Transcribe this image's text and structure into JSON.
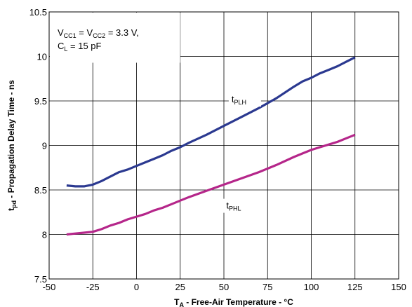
{
  "chart_data": {
    "type": "line",
    "xlabel_main": "T",
    "xlabel_sub": "A",
    "xlabel_rest": " - Free-Air Temperature - °C",
    "ylabel_main": "t",
    "ylabel_sub": "pd",
    "ylabel_rest": " - Propagation Delay Time - ns",
    "xlim": [
      -50,
      150
    ],
    "ylim": [
      7.5,
      10.5
    ],
    "x_ticks": [
      -50,
      -25,
      0,
      25,
      50,
      75,
      100,
      125,
      150
    ],
    "x_tick_labels": [
      "-50",
      "-25",
      "0",
      "25",
      "50",
      "75",
      "100",
      "125",
      "150"
    ],
    "y_ticks": [
      7.5,
      8,
      8.5,
      9,
      9.5,
      10,
      10.5
    ],
    "y_tick_labels": [
      "7.5",
      "8",
      "8.5",
      "9",
      "9.5",
      "10",
      "10.5"
    ],
    "grid": true,
    "annotation": {
      "line1_a": "V",
      "line1_a_sub": "CC1",
      "line1_b": " = V",
      "line1_b_sub": "CC2",
      "line1_c": " = 3.3 V,",
      "line2_a": "C",
      "line2_a_sub": "L",
      "line2_b": " = 15 pF"
    },
    "series": [
      {
        "name_main": "t",
        "name_sub": "PLH",
        "color": "#2b3990",
        "x": [
          -40,
          -35,
          -30,
          -25,
          -20,
          -15,
          -10,
          -5,
          0,
          5,
          10,
          15,
          20,
          25,
          30,
          40,
          50,
          60,
          70,
          80,
          90,
          95,
          100,
          105,
          110,
          115,
          120,
          125
        ],
        "y": [
          8.55,
          8.54,
          8.54,
          8.56,
          8.6,
          8.65,
          8.7,
          8.73,
          8.77,
          8.81,
          8.85,
          8.89,
          8.94,
          8.98,
          9.03,
          9.12,
          9.22,
          9.32,
          9.42,
          9.53,
          9.66,
          9.72,
          9.76,
          9.81,
          9.85,
          9.89,
          9.94,
          9.99
        ]
      },
      {
        "name_main": "t",
        "name_sub": "PHL",
        "color": "#b5268a",
        "x": [
          -40,
          -35,
          -30,
          -25,
          -20,
          -15,
          -10,
          -5,
          0,
          5,
          10,
          15,
          20,
          25,
          30,
          40,
          50,
          60,
          70,
          80,
          90,
          95,
          100,
          105,
          110,
          115,
          120,
          125
        ],
        "y": [
          8.0,
          8.01,
          8.02,
          8.03,
          8.06,
          8.1,
          8.13,
          8.17,
          8.2,
          8.23,
          8.27,
          8.3,
          8.34,
          8.38,
          8.42,
          8.49,
          8.56,
          8.63,
          8.7,
          8.78,
          8.87,
          8.91,
          8.95,
          8.98,
          9.01,
          9.04,
          9.08,
          9.12
        ]
      }
    ]
  }
}
